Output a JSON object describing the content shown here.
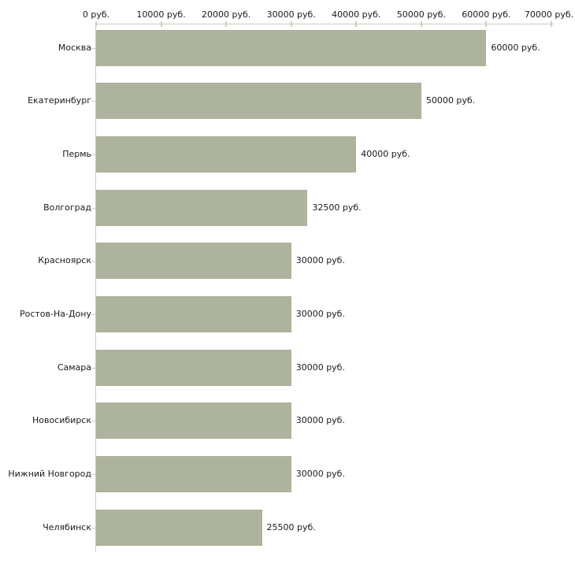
{
  "chart_data": {
    "type": "bar",
    "orientation": "horizontal",
    "title": "",
    "unit": "руб.",
    "categories": [
      "Москва",
      "Екатеринбург",
      "Пермь",
      "Волгоград",
      "Красноярск",
      "Ростов-На-Дону",
      "Самара",
      "Новосибирск",
      "Нижний Новгород",
      "Челябинск"
    ],
    "values": [
      60000,
      50000,
      40000,
      32500,
      30000,
      30000,
      30000,
      30000,
      30000,
      25500
    ],
    "value_labels": [
      "60000 руб.",
      "50000 руб.",
      "40000 руб.",
      "32500 руб.",
      "30000 руб.",
      "30000 руб.",
      "30000 руб.",
      "30000 руб.",
      "30000 руб.",
      "25500 руб."
    ],
    "x_ticks": [
      0,
      10000,
      20000,
      30000,
      40000,
      50000,
      60000,
      70000
    ],
    "x_tick_labels": [
      "0 руб.",
      "10000 руб.",
      "20000 руб.",
      "30000 руб.",
      "40000 руб.",
      "50000 руб.",
      "60000 руб.",
      "70000 руб."
    ],
    "xlim": [
      0,
      70000
    ],
    "xlabel": "",
    "ylabel": "",
    "legend_position": "none",
    "grid": false,
    "colors": {
      "bar": "#adb39c",
      "tick": "#cdd2a6",
      "axis_line": "#c9c9c9",
      "text": "#1a1a1a",
      "background": "#ffffff"
    }
  }
}
